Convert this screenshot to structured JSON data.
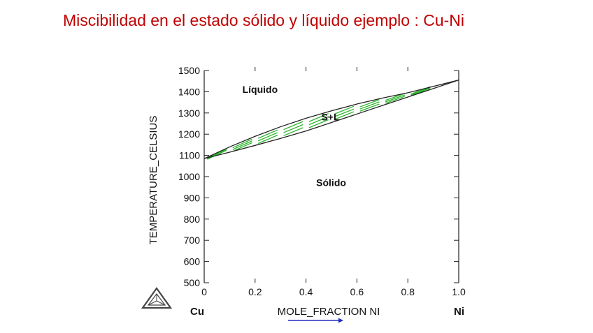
{
  "title": "Miscibilidad en el estado sólido y líquido ejemplo : Cu-Ni",
  "chart_data": {
    "type": "line",
    "xlabel": "MOLE_FRACTION NI",
    "ylabel": "TEMPERATURE_CELSIUS",
    "xlim": [
      0,
      1.0
    ],
    "ylim": [
      500,
      1500
    ],
    "x_ticks": [
      0,
      0.2,
      0.4,
      0.6,
      0.8,
      1.0
    ],
    "x_tick_labels": [
      "0",
      "0.2",
      "0.4",
      "0.6",
      "0.8",
      "1.0"
    ],
    "y_ticks": [
      500,
      600,
      700,
      800,
      900,
      1000,
      1100,
      1200,
      1300,
      1400,
      1500
    ],
    "y_tick_labels": [
      "500",
      "600",
      "700",
      "800",
      "900",
      "1000",
      "1100",
      "1200",
      "1300",
      "1400",
      "1500"
    ],
    "series": [
      {
        "x": [
          0,
          0.1,
          0.2,
          0.3,
          0.4,
          0.5,
          0.6,
          0.7,
          0.8,
          0.9,
          1.0
        ],
        "y": [
          1085,
          1140,
          1190,
          1235,
          1275,
          1310,
          1342,
          1370,
          1395,
          1425,
          1455
        ]
      },
      {
        "x": [
          0,
          0.1,
          0.2,
          0.3,
          0.4,
          0.5,
          0.6,
          0.7,
          0.8,
          0.9,
          1.0
        ],
        "y": [
          1085,
          1115,
          1147,
          1180,
          1215,
          1255,
          1295,
          1335,
          1375,
          1415,
          1455
        ]
      }
    ],
    "annotations": [
      {
        "text": "Líquido",
        "x": 0.15,
        "y": 1395
      },
      {
        "text": "S+L",
        "x": 0.46,
        "y": 1265
      },
      {
        "text": "Sólido",
        "x": 0.44,
        "y": 955
      }
    ],
    "x_end_labels": {
      "left": "Cu",
      "right": "Ni"
    },
    "colors": {
      "curves": "#222222",
      "tie_lines": "#2db52d",
      "arrow": "#1f2fbf",
      "logo": "#444444"
    }
  }
}
